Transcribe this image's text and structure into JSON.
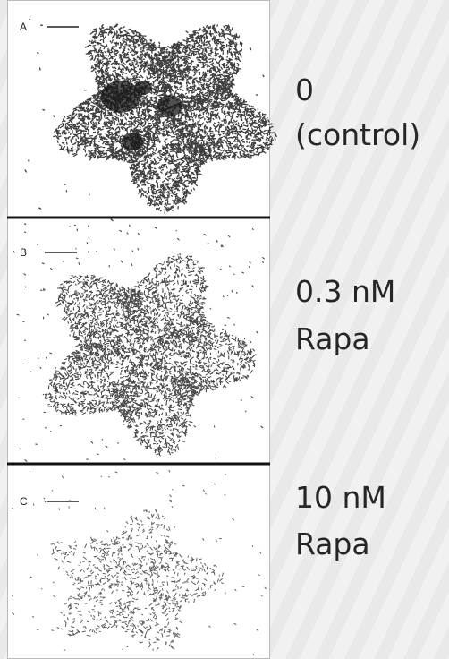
{
  "panels": [
    {
      "letter": "A",
      "lines": [
        "0",
        "(control)"
      ]
    },
    {
      "letter": "B",
      "lines": [
        "0.3 nM",
        "Rapa"
      ]
    },
    {
      "letter": "C",
      "lines": [
        "10 nM",
        "Rapa"
      ]
    }
  ]
}
